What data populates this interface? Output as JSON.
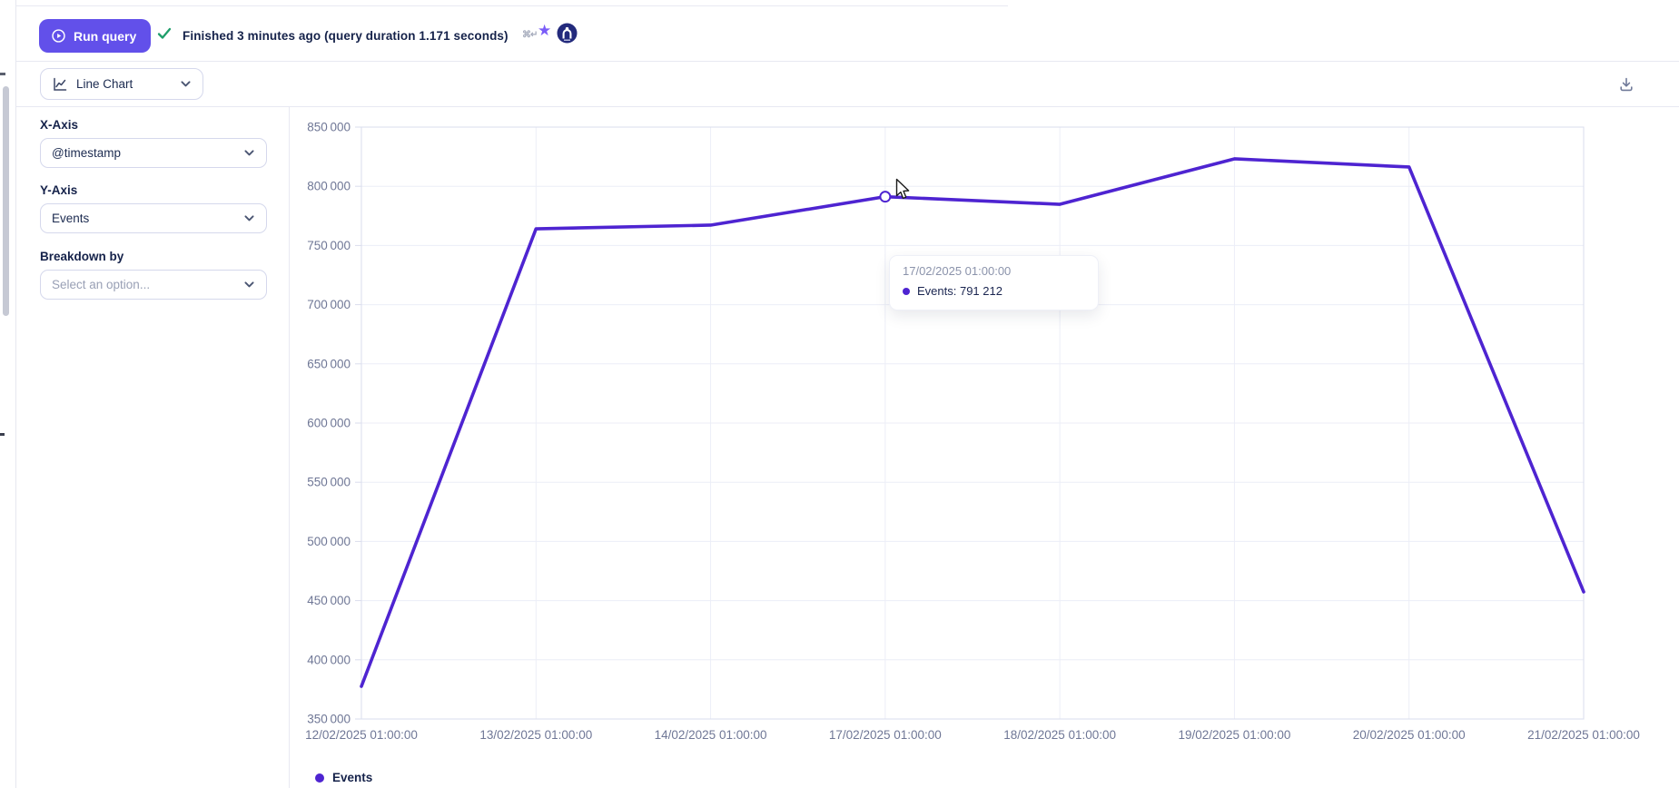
{
  "status_bar": {
    "run_query_label": "Run query",
    "status_text": "Finished 3 minutes ago (query duration 1.171 seconds)",
    "shortcut_hint": "⌘↵"
  },
  "toolbar": {
    "chart_type_value": "Line Chart"
  },
  "controls": {
    "x_axis_label": "X-Axis",
    "x_axis_value": "@timestamp",
    "y_axis_label": "Y-Axis",
    "y_axis_value": "Events",
    "breakdown_label": "Breakdown by",
    "breakdown_placeholder": "Select an option..."
  },
  "chart_data": {
    "type": "line",
    "title": "",
    "xlabel": "",
    "ylabel": "",
    "x": [
      "12/02/2025 01:00:00",
      "13/02/2025 01:00:00",
      "14/02/2025 01:00:00",
      "17/02/2025 01:00:00",
      "18/02/2025 01:00:00",
      "19/02/2025 01:00:00",
      "20/02/2025 01:00:00",
      "21/02/2025 01:00:00"
    ],
    "series": [
      {
        "name": "Events",
        "values": [
          377600,
          764100,
          767200,
          791212,
          784800,
          823200,
          816300,
          457400
        ]
      }
    ],
    "ylim": [
      350000,
      850000
    ],
    "ytick_step": 50000,
    "grid": true,
    "legend_position": "bottom-left",
    "hover_point": {
      "index": 3,
      "x": "17/02/2025 01:00:00",
      "series": "Events",
      "value": 791212
    }
  },
  "tooltip": {
    "date": "17/02/2025 01:00:00",
    "value_text": "Events: 791 212"
  },
  "legend": {
    "label": "Events"
  },
  "colors": {
    "accent": "#6250ea",
    "line": "#4e24d1",
    "success": "#1e9e6a",
    "tick_text": "#6f7796",
    "grid": "#eceef7",
    "plot_border": "#dadded"
  }
}
